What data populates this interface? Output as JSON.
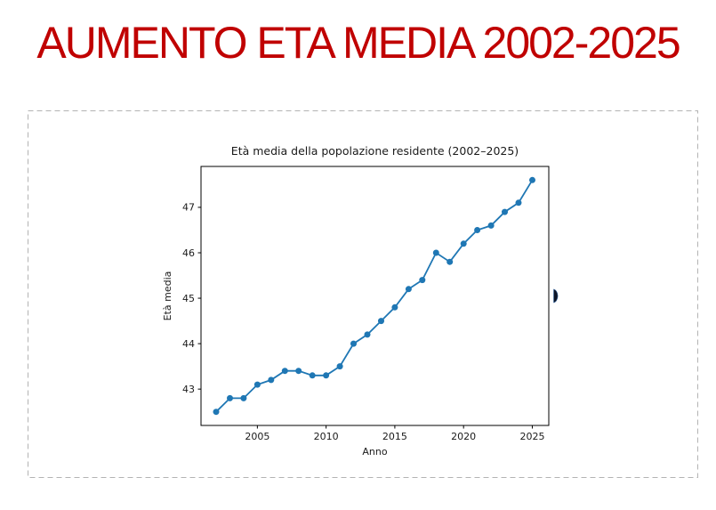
{
  "slide": {
    "title": "AUMENTO ETA MEDIA 2002-2025",
    "title_color": "#C00000"
  },
  "placeholder": {
    "border_color": "#b3b3b3"
  },
  "chart_data": {
    "type": "line",
    "title": "Età media della popolazione residente (2002–2025)",
    "xlabel": "Anno",
    "ylabel": "Età media",
    "x": [
      2002,
      2003,
      2004,
      2005,
      2006,
      2007,
      2008,
      2009,
      2010,
      2011,
      2012,
      2013,
      2014,
      2015,
      2016,
      2017,
      2018,
      2019,
      2020,
      2021,
      2022,
      2023,
      2024,
      2025
    ],
    "values": [
      42.5,
      42.8,
      42.8,
      43.1,
      43.2,
      43.4,
      43.4,
      43.3,
      43.3,
      43.5,
      44.0,
      44.2,
      44.5,
      44.8,
      45.2,
      45.4,
      46.0,
      45.8,
      46.2,
      46.5,
      46.6,
      46.9,
      47.1,
      47.6
    ],
    "xlim": [
      2000.9,
      2026.2
    ],
    "ylim": [
      42.2,
      47.9
    ],
    "xticks": [
      2005,
      2010,
      2015,
      2020,
      2025
    ],
    "yticks": [
      43,
      44,
      45,
      46,
      47
    ],
    "grid": false,
    "legend": null,
    "line_color": "#1f77b4",
    "marker": "o",
    "text_color": "#1a1a1a",
    "spine_color": "#000000"
  }
}
